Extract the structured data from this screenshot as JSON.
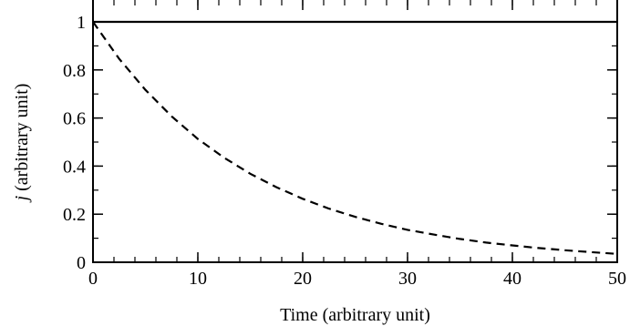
{
  "chart_data": {
    "type": "line",
    "title": "",
    "xlabel": "Time (arbitrary unit)",
    "ylabel_symbol": "j",
    "ylabel_rest": " (arbitrary unit)",
    "xlim": [
      0,
      50
    ],
    "ylim": [
      0,
      1
    ],
    "x_ticks": [
      0,
      10,
      20,
      30,
      40,
      50
    ],
    "x_tick_labels": [
      "0",
      "10",
      "20",
      "30",
      "40",
      "50"
    ],
    "x_minor_step": 2,
    "y_ticks": [
      0,
      0.2,
      0.4,
      0.6,
      0.8,
      1
    ],
    "y_tick_labels": [
      "0",
      "0.2",
      "0.4",
      "0.6",
      "0.8",
      "1"
    ],
    "y_minor_step": 0.1,
    "grid": false,
    "legend": "none",
    "series": [
      {
        "style": "solid",
        "color": "#000000",
        "x": [
          0,
          5,
          10,
          15,
          20,
          25,
          30,
          35,
          40,
          45,
          50
        ],
        "y": [
          1,
          1,
          1,
          1,
          1,
          1,
          1,
          1,
          1,
          1,
          1
        ]
      },
      {
        "style": "dashed",
        "color": "#000000",
        "x": [
          0,
          2.5,
          5,
          7.5,
          10,
          12.5,
          15,
          17.5,
          20,
          22.5,
          25,
          27.5,
          30,
          32.5,
          35,
          37.5,
          40,
          42.5,
          45,
          47.5,
          50
        ],
        "y": [
          1.0,
          0.846,
          0.717,
          0.607,
          0.513,
          0.435,
          0.368,
          0.312,
          0.264,
          0.223,
          0.189,
          0.16,
          0.135,
          0.115,
          0.097,
          0.082,
          0.07,
          0.059,
          0.05,
          0.042,
          0.035
        ]
      }
    ]
  }
}
